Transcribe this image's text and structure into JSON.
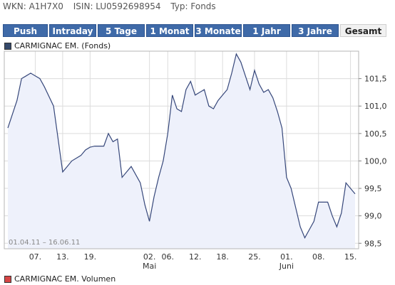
{
  "info": {
    "wkn": "WKN: A1H7X0",
    "isin": "ISIN: LU0592698954",
    "typ": "Typ: Fonds"
  },
  "tabs": [
    {
      "label": "Push",
      "active": false
    },
    {
      "label": "Intraday",
      "active": false
    },
    {
      "label": "5 Tage",
      "active": false
    },
    {
      "label": "1 Monat",
      "active": false
    },
    {
      "label": "3 Monate",
      "active": false
    },
    {
      "label": "1 Jahr",
      "active": false
    },
    {
      "label": "3 Jahre",
      "active": false
    },
    {
      "label": "Gesamt",
      "active": true
    }
  ],
  "legend": {
    "main": "CARMIGNAC EM. (Fonds)",
    "volume": "CARMIGNAC EM. Volumen",
    "main_color": "#35496b",
    "volume_color": "#d64545"
  },
  "colors": {
    "line": "#36477a",
    "fill": "#eef1fb",
    "grid": "#dcdcdc"
  },
  "chart_data": {
    "type": "area",
    "date_range_label": "01.04.11 – 16.06.11",
    "ylim": [
      98.4,
      102.0
    ],
    "yticks": [
      "98,5",
      "99,0",
      "99,5",
      "100,0",
      "100,5",
      "101,0",
      "101,5"
    ],
    "ytick_values": [
      98.5,
      99.0,
      99.5,
      100.0,
      100.5,
      101.0,
      101.5
    ],
    "xlim": [
      0,
      76
    ],
    "xticks": [
      {
        "x": 6,
        "label": "07."
      },
      {
        "x": 12,
        "label": "13."
      },
      {
        "x": 18,
        "label": "19."
      },
      {
        "x": 31,
        "label": "02.",
        "sub": "Mai"
      },
      {
        "x": 35,
        "label": "06."
      },
      {
        "x": 41,
        "label": "12."
      },
      {
        "x": 47,
        "label": "18."
      },
      {
        "x": 54,
        "label": "25."
      },
      {
        "x": 61,
        "label": "01.",
        "sub": "Juni"
      },
      {
        "x": 68,
        "label": "08."
      },
      {
        "x": 75,
        "label": "15."
      }
    ],
    "series": [
      {
        "x": [
          0,
          2,
          3,
          4,
          5,
          6,
          7,
          8,
          10,
          11,
          12,
          13,
          14,
          16,
          17,
          18,
          19,
          20,
          21,
          22,
          23,
          24,
          25,
          26,
          27,
          29,
          30,
          31,
          32,
          33,
          34,
          35,
          36,
          37,
          38,
          39,
          40,
          41,
          42,
          43,
          44,
          45,
          46,
          47,
          48,
          49,
          50,
          51,
          52,
          53,
          54,
          55,
          56,
          57,
          58,
          59,
          60,
          61,
          62,
          63,
          64,
          65,
          66,
          67,
          68,
          69,
          70,
          71,
          72,
          73,
          74,
          75,
          76
        ],
        "y": [
          100.6,
          101.1,
          101.5,
          101.55,
          101.6,
          101.55,
          101.5,
          101.35,
          101.0,
          100.4,
          99.8,
          99.9,
          100.0,
          100.1,
          100.2,
          100.25,
          100.27,
          100.27,
          100.27,
          100.5,
          100.35,
          100.4,
          99.7,
          99.8,
          99.9,
          99.6,
          99.2,
          98.9,
          99.35,
          99.7,
          100.0,
          100.5,
          101.2,
          100.95,
          100.9,
          101.3,
          101.45,
          101.2,
          101.25,
          101.3,
          101.0,
          100.95,
          101.1,
          101.2,
          101.3,
          101.6,
          101.95,
          101.8,
          101.55,
          101.3,
          101.65,
          101.4,
          101.25,
          101.3,
          101.15,
          100.9,
          100.6,
          99.7,
          99.5,
          99.15,
          98.8,
          98.6,
          98.75,
          98.9,
          99.25,
          99.25,
          99.25,
          99.0,
          98.8,
          99.05,
          99.6,
          99.5,
          99.4
        ]
      }
    ]
  }
}
